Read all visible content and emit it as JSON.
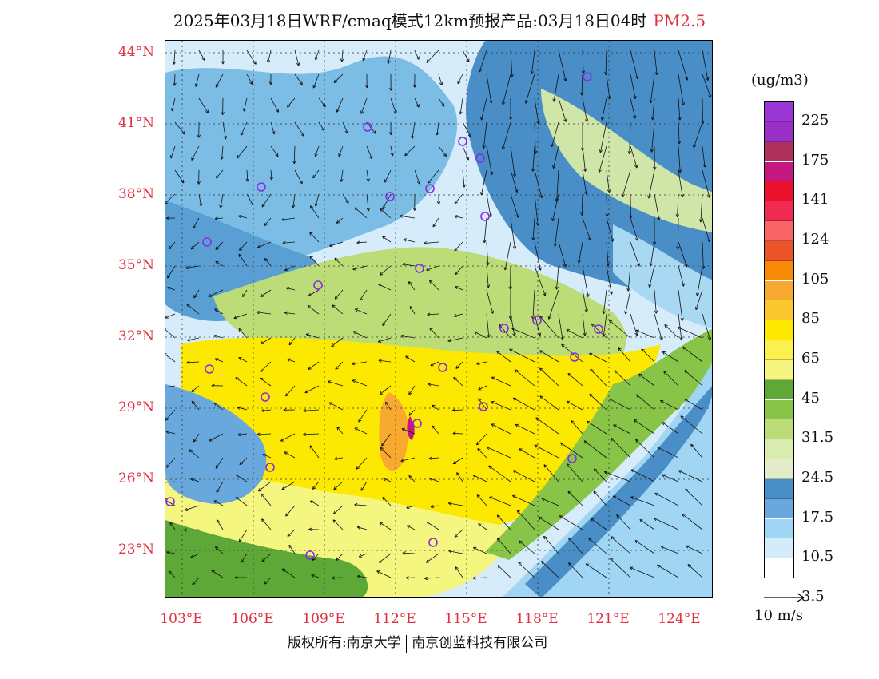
{
  "title": {
    "text": "2025年03月18日WRF/cmaq模式12km预报产品:03月18日04时",
    "variable": "PM2.5"
  },
  "map": {
    "lat_labels": [
      "44°N",
      "41°N",
      "38°N",
      "35°N",
      "32°N",
      "29°N",
      "26°N",
      "23°N"
    ],
    "lon_labels": [
      "103°E",
      "106°E",
      "109°E",
      "112°E",
      "115°E",
      "118°E",
      "121°E",
      "124°E"
    ],
    "background_color": "#e9f4fb",
    "station_color": "#8a2be2"
  },
  "legend": {
    "unit": "(ug/m3)",
    "colors": [
      "#9a35d6",
      "#9a2fc8",
      "#b0305c",
      "#c41880",
      "#e8102a",
      "#f02a50",
      "#f86468",
      "#ec5428",
      "#f88a08",
      "#f8aa30",
      "#fcc830",
      "#fce800",
      "#fcf050",
      "#f4f680",
      "#5ea838",
      "#88c448",
      "#bcdc78",
      "#d8ecb0",
      "#e2ecc8",
      "#4a8ec8",
      "#68a8dc",
      "#a0d6f4",
      "#d4ecfa",
      "#ffffff"
    ],
    "labels": [
      "225",
      "175",
      "141",
      "124",
      "105",
      "85",
      "65",
      "45",
      "31.5",
      "24.5",
      "17.5",
      "10.5",
      "3.5"
    ]
  },
  "wind_reference": {
    "label": "10 m/s"
  },
  "footer": {
    "copyright": "版权所有:南京大学",
    "company": "南京创蓝科技有限公司"
  }
}
